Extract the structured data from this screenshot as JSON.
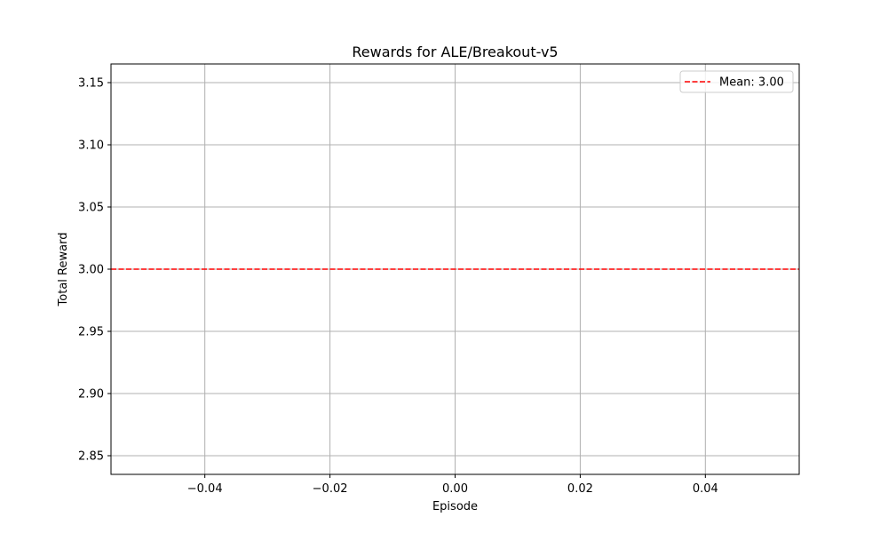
{
  "chart_data": {
    "type": "line",
    "title": "Rewards for ALE/Breakout-v5",
    "xlabel": "Episode",
    "ylabel": "Total Reward",
    "xlim": [
      -0.055,
      0.055
    ],
    "ylim": [
      2.835,
      3.165
    ],
    "xticks": [
      -0.04,
      -0.02,
      0.0,
      0.02,
      0.04
    ],
    "xtick_labels": [
      "−0.04",
      "−0.02",
      "0.00",
      "0.02",
      "0.04"
    ],
    "yticks": [
      2.85,
      2.9,
      2.95,
      3.0,
      3.05,
      3.1,
      3.15
    ],
    "ytick_labels": [
      "2.85",
      "2.90",
      "2.95",
      "3.00",
      "3.05",
      "3.10",
      "3.15"
    ],
    "grid": true,
    "legend_position": "top-right",
    "series": [
      {
        "name": "Mean: 3.00",
        "kind": "hline",
        "y": 3.0,
        "color": "#ff0000",
        "linestyle": "dashed"
      }
    ]
  }
}
